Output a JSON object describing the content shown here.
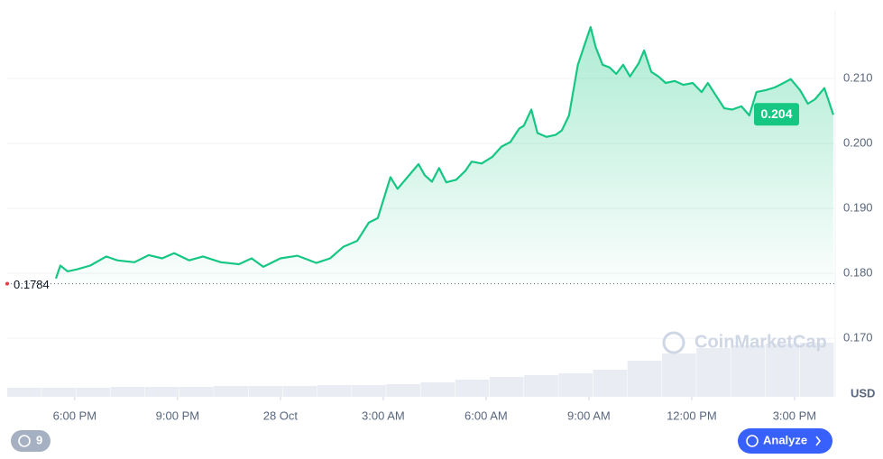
{
  "chart_data": {
    "type": "line",
    "x": [
      17.45,
      17.58,
      17.79,
      18.05,
      18.45,
      18.92,
      19.24,
      19.74,
      20.16,
      20.55,
      20.9,
      21.34,
      21.74,
      22.26,
      22.79,
      23.16,
      23.5,
      24,
      24.5,
      25.05,
      25.45,
      25.84,
      26.24,
      26.58,
      26.84,
      27.21,
      27.42,
      27.74,
      28.03,
      28.21,
      28.42,
      28.63,
      28.84,
      29.13,
      29.4,
      29.58,
      29.87,
      30.18,
      30.45,
      30.71,
      30.97,
      31.1,
      31.32,
      31.5,
      31.76,
      32.03,
      32.21,
      32.42,
      32.68,
      32.89,
      33.05,
      33.2,
      33.4,
      33.6,
      33.8,
      34,
      34.2,
      34.45,
      34.61,
      34.82,
      35.03,
      35.24,
      35.5,
      35.76,
      36.03,
      36.29,
      36.47,
      36.74,
      36.95,
      37.18,
      37.45,
      37.68,
      37.89,
      38.16,
      38.42,
      38.68,
      38.89,
      39.16,
      39.39,
      39.6,
      39.87,
      40.13
    ],
    "series": [
      {
        "name": "Price",
        "color": "#16c784",
        "values": [
          0.1792,
          0.1812,
          0.1803,
          0.1806,
          0.1812,
          0.1826,
          0.182,
          0.1817,
          0.1828,
          0.1823,
          0.1831,
          0.182,
          0.1826,
          0.1817,
          0.1814,
          0.1823,
          0.181,
          0.1823,
          0.1827,
          0.1816,
          0.1823,
          0.1841,
          0.185,
          0.1878,
          0.1885,
          0.1948,
          0.193,
          0.195,
          0.1968,
          0.1951,
          0.1941,
          0.1962,
          0.194,
          0.1944,
          0.1958,
          0.1972,
          0.1969,
          0.1979,
          0.1995,
          0.2002,
          0.2023,
          0.2027,
          0.2052,
          0.2016,
          0.201,
          0.2013,
          0.202,
          0.2043,
          0.2121,
          0.2154,
          0.2179,
          0.2148,
          0.2121,
          0.2117,
          0.2107,
          0.2121,
          0.2103,
          0.2123,
          0.2143,
          0.211,
          0.2103,
          0.2093,
          0.2096,
          0.209,
          0.2093,
          0.2079,
          0.2093,
          0.2071,
          0.2054,
          0.2052,
          0.2057,
          0.2043,
          0.2079,
          0.2082,
          0.2086,
          0.2093,
          0.2099,
          0.2082,
          0.2061,
          0.2068,
          0.2085,
          0.2044
        ]
      }
    ],
    "xlim": [
      16.03,
      40.16
    ],
    "xticks": [
      {
        "value": 18,
        "label": "6:00 PM"
      },
      {
        "value": 21,
        "label": "9:00 PM"
      },
      {
        "value": 24,
        "label": "28 Oct"
      },
      {
        "value": 27,
        "label": "3:00 AM"
      },
      {
        "value": 30,
        "label": "6:00 AM"
      },
      {
        "value": 33,
        "label": "9:00 AM"
      },
      {
        "value": 36,
        "label": "12:00 PM"
      },
      {
        "value": 39,
        "label": "3:00 PM"
      }
    ],
    "ylim": [
      0.161,
      0.2204
    ],
    "yticks": [
      {
        "value": 0.17,
        "label": "0.170"
      },
      {
        "value": 0.18,
        "label": "0.180"
      },
      {
        "value": 0.19,
        "label": "0.190"
      },
      {
        "value": 0.2,
        "label": "0.200"
      },
      {
        "value": 0.21,
        "label": "0.210"
      }
    ],
    "grid": true,
    "currency": "USD",
    "open_price": {
      "value": 0.1784,
      "label": "0.1784"
    },
    "price_tag": {
      "value": 0.2044,
      "label": "0.204"
    },
    "volume": {
      "color": "#e9ecf2",
      "ylim": [
        0,
        100
      ],
      "values": [
        10,
        10,
        10,
        11,
        11,
        11,
        12,
        12,
        12,
        13,
        13,
        14,
        16,
        19,
        22,
        24,
        26,
        30,
        40,
        48,
        54,
        57,
        59,
        60
      ]
    }
  },
  "ui": {
    "watermark": "CoinMarketCap",
    "history_count": "9",
    "analyze_button": "Analyze"
  }
}
